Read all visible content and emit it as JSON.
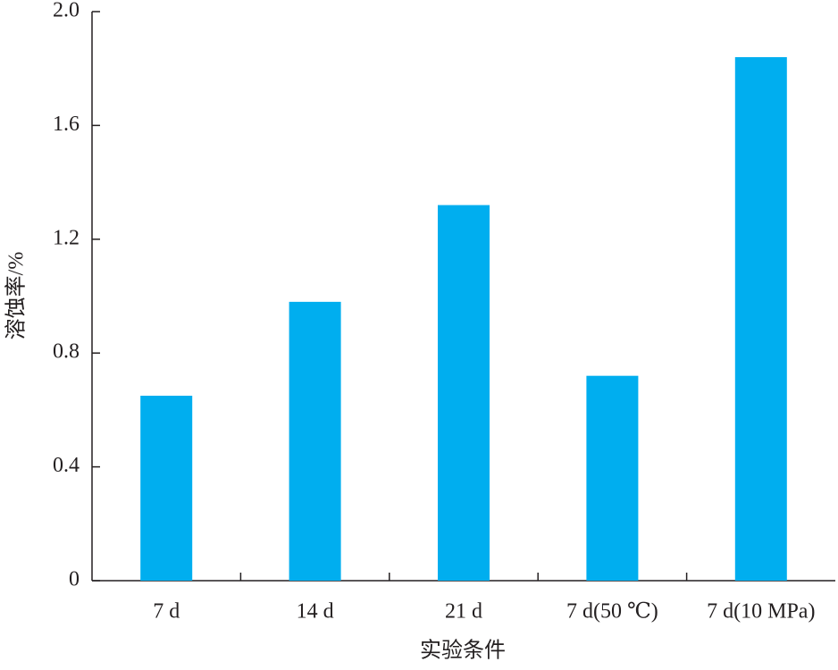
{
  "chart_data": {
    "type": "bar",
    "x_label": "实验条件",
    "y_label": "溶蚀率/%",
    "categories": [
      "7 d",
      "14 d",
      "21 d",
      "7 d(50 ℃)",
      "7 d(10 MPa)"
    ],
    "values": [
      0.65,
      0.98,
      1.32,
      0.72,
      1.84
    ],
    "color": "#00aeef",
    "ylim": [
      0,
      2
    ],
    "yticks": [
      0,
      0.4,
      0.8,
      1.2,
      1.6,
      {
        "value": 2,
        "label": "2.0"
      }
    ]
  }
}
